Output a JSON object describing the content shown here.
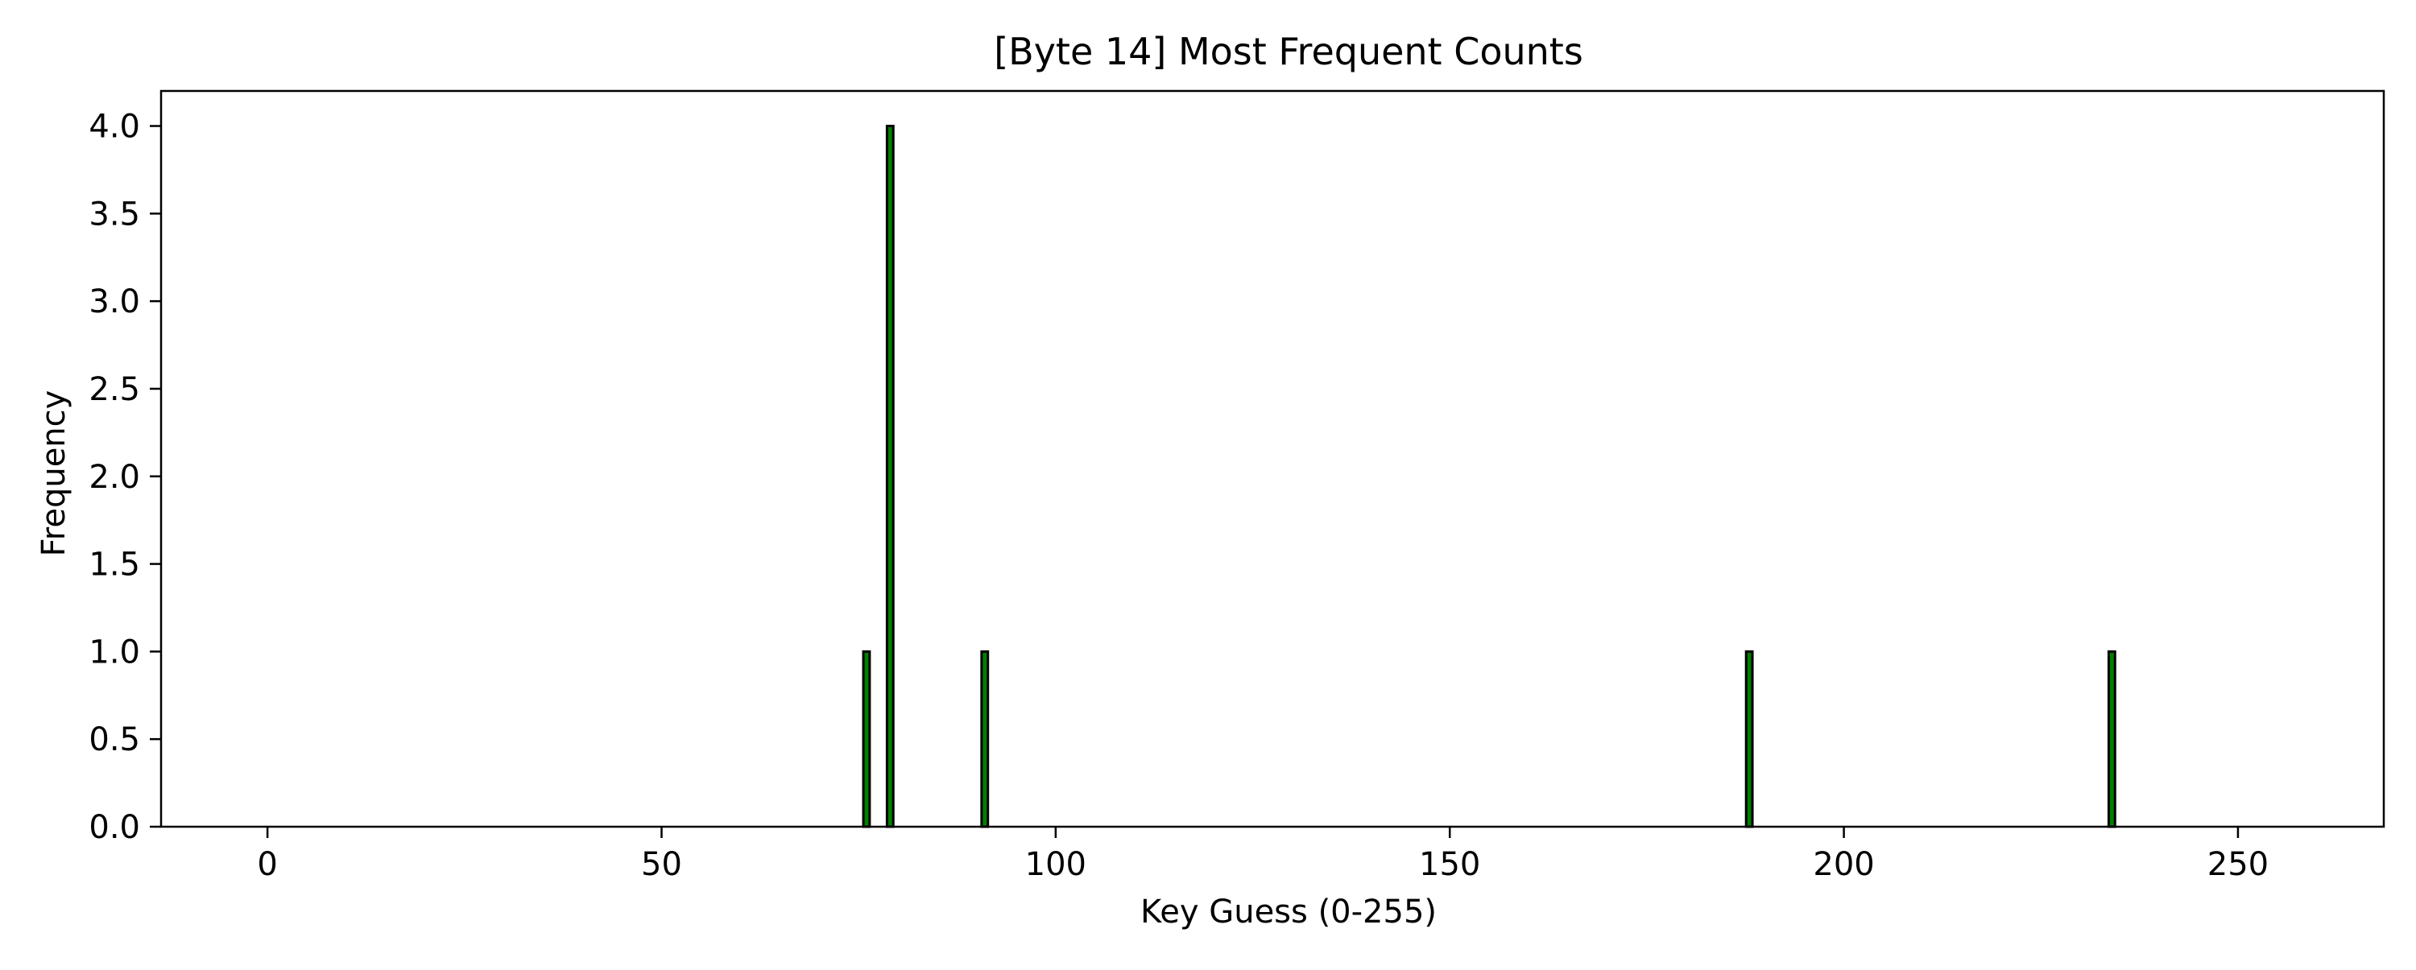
{
  "chart_data": {
    "type": "bar",
    "title": "[Byte 14] Most Frequent Counts",
    "xlabel": "Key Guess (0-255)",
    "ylabel": "Frequency",
    "xlim": [
      -13.5,
      268.5
    ],
    "ylim": [
      0,
      4.2
    ],
    "x_ticks": [
      0,
      50,
      100,
      150,
      200,
      250
    ],
    "x_tick_labels": [
      "0",
      "50",
      "100",
      "150",
      "200",
      "250"
    ],
    "y_ticks": [
      0,
      0.5,
      1.0,
      1.5,
      2.0,
      2.5,
      3.0,
      3.5,
      4.0
    ],
    "y_tick_labels": [
      "0.0",
      "0.5",
      "1.0",
      "1.5",
      "2.0",
      "2.5",
      "3.0",
      "3.5",
      "4.0"
    ],
    "grid": false,
    "legend": "none",
    "bar_color": "#008000",
    "edge_color": "#000000",
    "x_range": [
      0,
      255
    ],
    "nonzero": [
      {
        "x": 76,
        "y": 1
      },
      {
        "x": 79,
        "y": 4
      },
      {
        "x": 91,
        "y": 1
      },
      {
        "x": 188,
        "y": 1
      },
      {
        "x": 234,
        "y": 1
      }
    ]
  }
}
